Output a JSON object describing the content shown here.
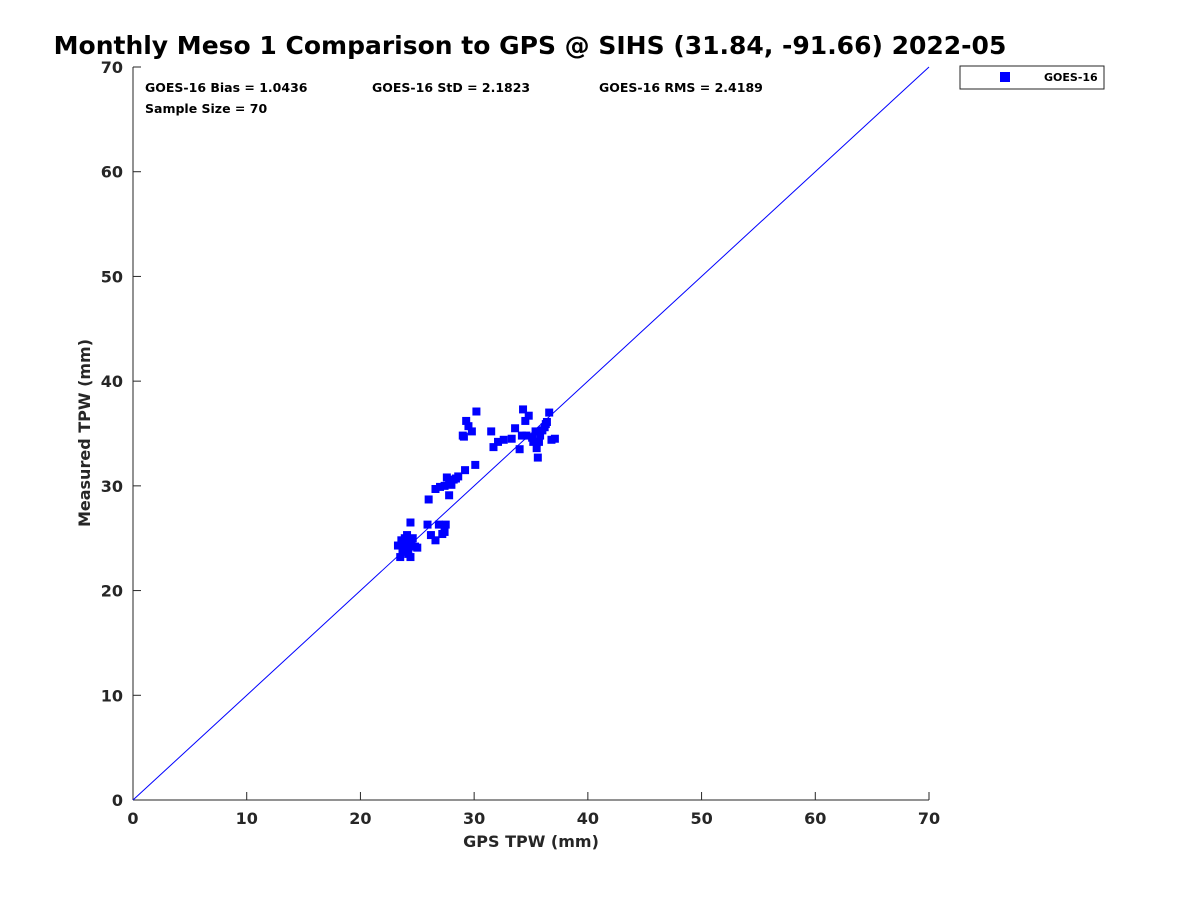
{
  "chart_data": {
    "type": "scatter",
    "title": "Monthly Meso 1 Comparison to GPS @ SIHS (31.84, -91.66) 2022-05",
    "xlabel": "GPS TPW (mm)",
    "ylabel": "Measured TPW (mm)",
    "xlim": [
      0,
      70
    ],
    "ylim": [
      0,
      70
    ],
    "xticks": [
      "0",
      "10",
      "20",
      "30",
      "40",
      "50",
      "60",
      "70"
    ],
    "yticks": [
      "0",
      "10",
      "20",
      "30",
      "40",
      "50",
      "60",
      "70"
    ],
    "grid": false,
    "legend_position": "outside-top-right",
    "reference_line": {
      "x": [
        0,
        70
      ],
      "y": [
        0,
        70
      ],
      "color": "#0000ff"
    },
    "annotations": {
      "bias": "GOES-16 Bias = 1.0436",
      "std": "GOES-16 StD = 2.1823",
      "rms": "GOES-16 RMS = 2.4189",
      "sample_size": "Sample Size = 70"
    },
    "series": [
      {
        "name": "GOES-16",
        "color": "#0000ff",
        "marker": "square",
        "x": [
          23.3,
          23.5,
          23.6,
          23.7,
          23.9,
          24.0,
          24.1,
          24.2,
          24.3,
          24.4,
          24.5,
          24.6,
          24.8,
          25.0,
          24.2,
          24.4,
          24.0,
          23.8,
          25.9,
          26.2,
          26.6,
          26.9,
          27.2,
          27.5,
          27.4,
          26.0,
          26.6,
          27.0,
          27.4,
          27.6,
          27.8,
          28.0,
          28.2,
          28.4,
          28.6,
          27.8,
          29.2,
          30.1,
          29.1,
          29.3,
          29.5,
          29.8,
          30.2,
          29.0,
          31.5,
          31.7,
          32.1,
          32.6,
          33.3,
          33.6,
          34.0,
          34.2,
          34.3,
          34.5,
          34.8,
          35.2,
          35.4,
          35.6,
          35.8,
          36.0,
          36.2,
          36.4,
          36.6,
          36.8,
          37.1,
          35.5,
          35.7,
          36.3,
          34.6,
          35.1
        ],
        "y": [
          24.3,
          23.2,
          24.8,
          23.7,
          25.0,
          24.5,
          25.3,
          23.9,
          24.4,
          23.2,
          24.6,
          25.0,
          24.2,
          24.1,
          23.5,
          26.5,
          24.9,
          24.3,
          26.3,
          25.3,
          24.8,
          26.3,
          25.4,
          26.3,
          25.6,
          28.7,
          29.7,
          29.9,
          30.0,
          30.8,
          30.4,
          30.1,
          30.6,
          30.7,
          30.9,
          29.1,
          31.5,
          32.0,
          34.7,
          36.2,
          35.7,
          35.2,
          37.1,
          34.8,
          35.2,
          33.7,
          34.2,
          34.4,
          34.5,
          35.5,
          33.5,
          34.8,
          37.3,
          36.2,
          36.7,
          34.2,
          35.2,
          32.7,
          34.8,
          35.3,
          35.6,
          36.1,
          37.0,
          34.4,
          34.5,
          33.6,
          34.2,
          35.9,
          34.8,
          34.6
        ]
      }
    ]
  }
}
